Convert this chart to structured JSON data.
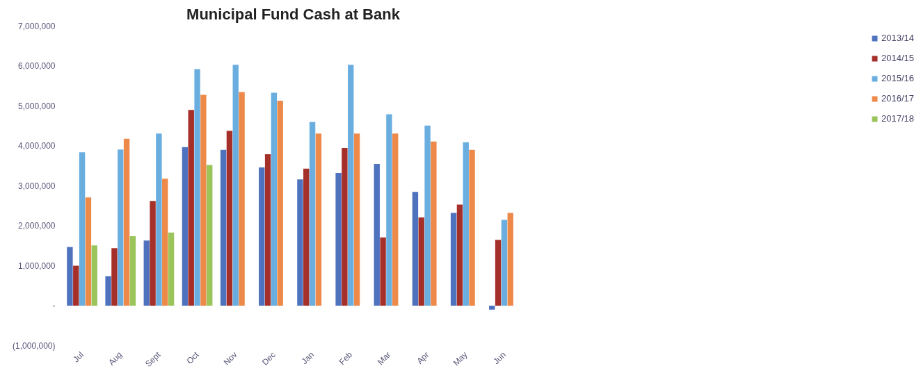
{
  "chart_data": {
    "type": "bar",
    "title": "Municipal Fund Cash at Bank",
    "categories": [
      "Jul",
      "Aug",
      "Sept",
      "Oct",
      "Nov",
      "Dec",
      "Jan",
      "Feb",
      "Mar",
      "Apr",
      "May",
      "Jun"
    ],
    "series": [
      {
        "name": "2013/14",
        "color": "#4f72be",
        "values": [
          1470000,
          740000,
          1630000,
          3970000,
          3900000,
          3460000,
          3160000,
          3320000,
          3550000,
          2850000,
          2320000,
          -100000
        ]
      },
      {
        "name": "2014/15",
        "color": "#a5302a",
        "values": [
          1000000,
          1440000,
          2620000,
          4900000,
          4380000,
          3790000,
          3430000,
          3950000,
          1710000,
          2210000,
          2530000,
          1650000
        ]
      },
      {
        "name": "2015/16",
        "color": "#6aaee0",
        "values": [
          3840000,
          3910000,
          4310000,
          5920000,
          6030000,
          5330000,
          4600000,
          6030000,
          4790000,
          4510000,
          4090000,
          2150000
        ]
      },
      {
        "name": "2016/17",
        "color": "#ed8a4a",
        "values": [
          2710000,
          4180000,
          3180000,
          5280000,
          5350000,
          5130000,
          4310000,
          4310000,
          4310000,
          4110000,
          3900000,
          2320000
        ]
      },
      {
        "name": "2017/18",
        "color": "#9bc45a",
        "values": [
          1510000,
          1740000,
          1830000,
          3520000,
          null,
          null,
          null,
          null,
          null,
          null,
          null,
          null
        ]
      }
    ],
    "ylim": [
      -1000000,
      7000000
    ],
    "yticks": [
      {
        "value": -1000000,
        "label": "(1,000,000)"
      },
      {
        "value": 0,
        "label": "-"
      },
      {
        "value": 1000000,
        "label": "1,000,000"
      },
      {
        "value": 2000000,
        "label": "2,000,000"
      },
      {
        "value": 3000000,
        "label": "3,000,000"
      },
      {
        "value": 4000000,
        "label": "4,000,000"
      },
      {
        "value": 5000000,
        "label": "5,000,000"
      },
      {
        "value": 6000000,
        "label": "6,000,000"
      },
      {
        "value": 7000000,
        "label": "7,000,000"
      }
    ],
    "grid": false,
    "legend": "right"
  }
}
